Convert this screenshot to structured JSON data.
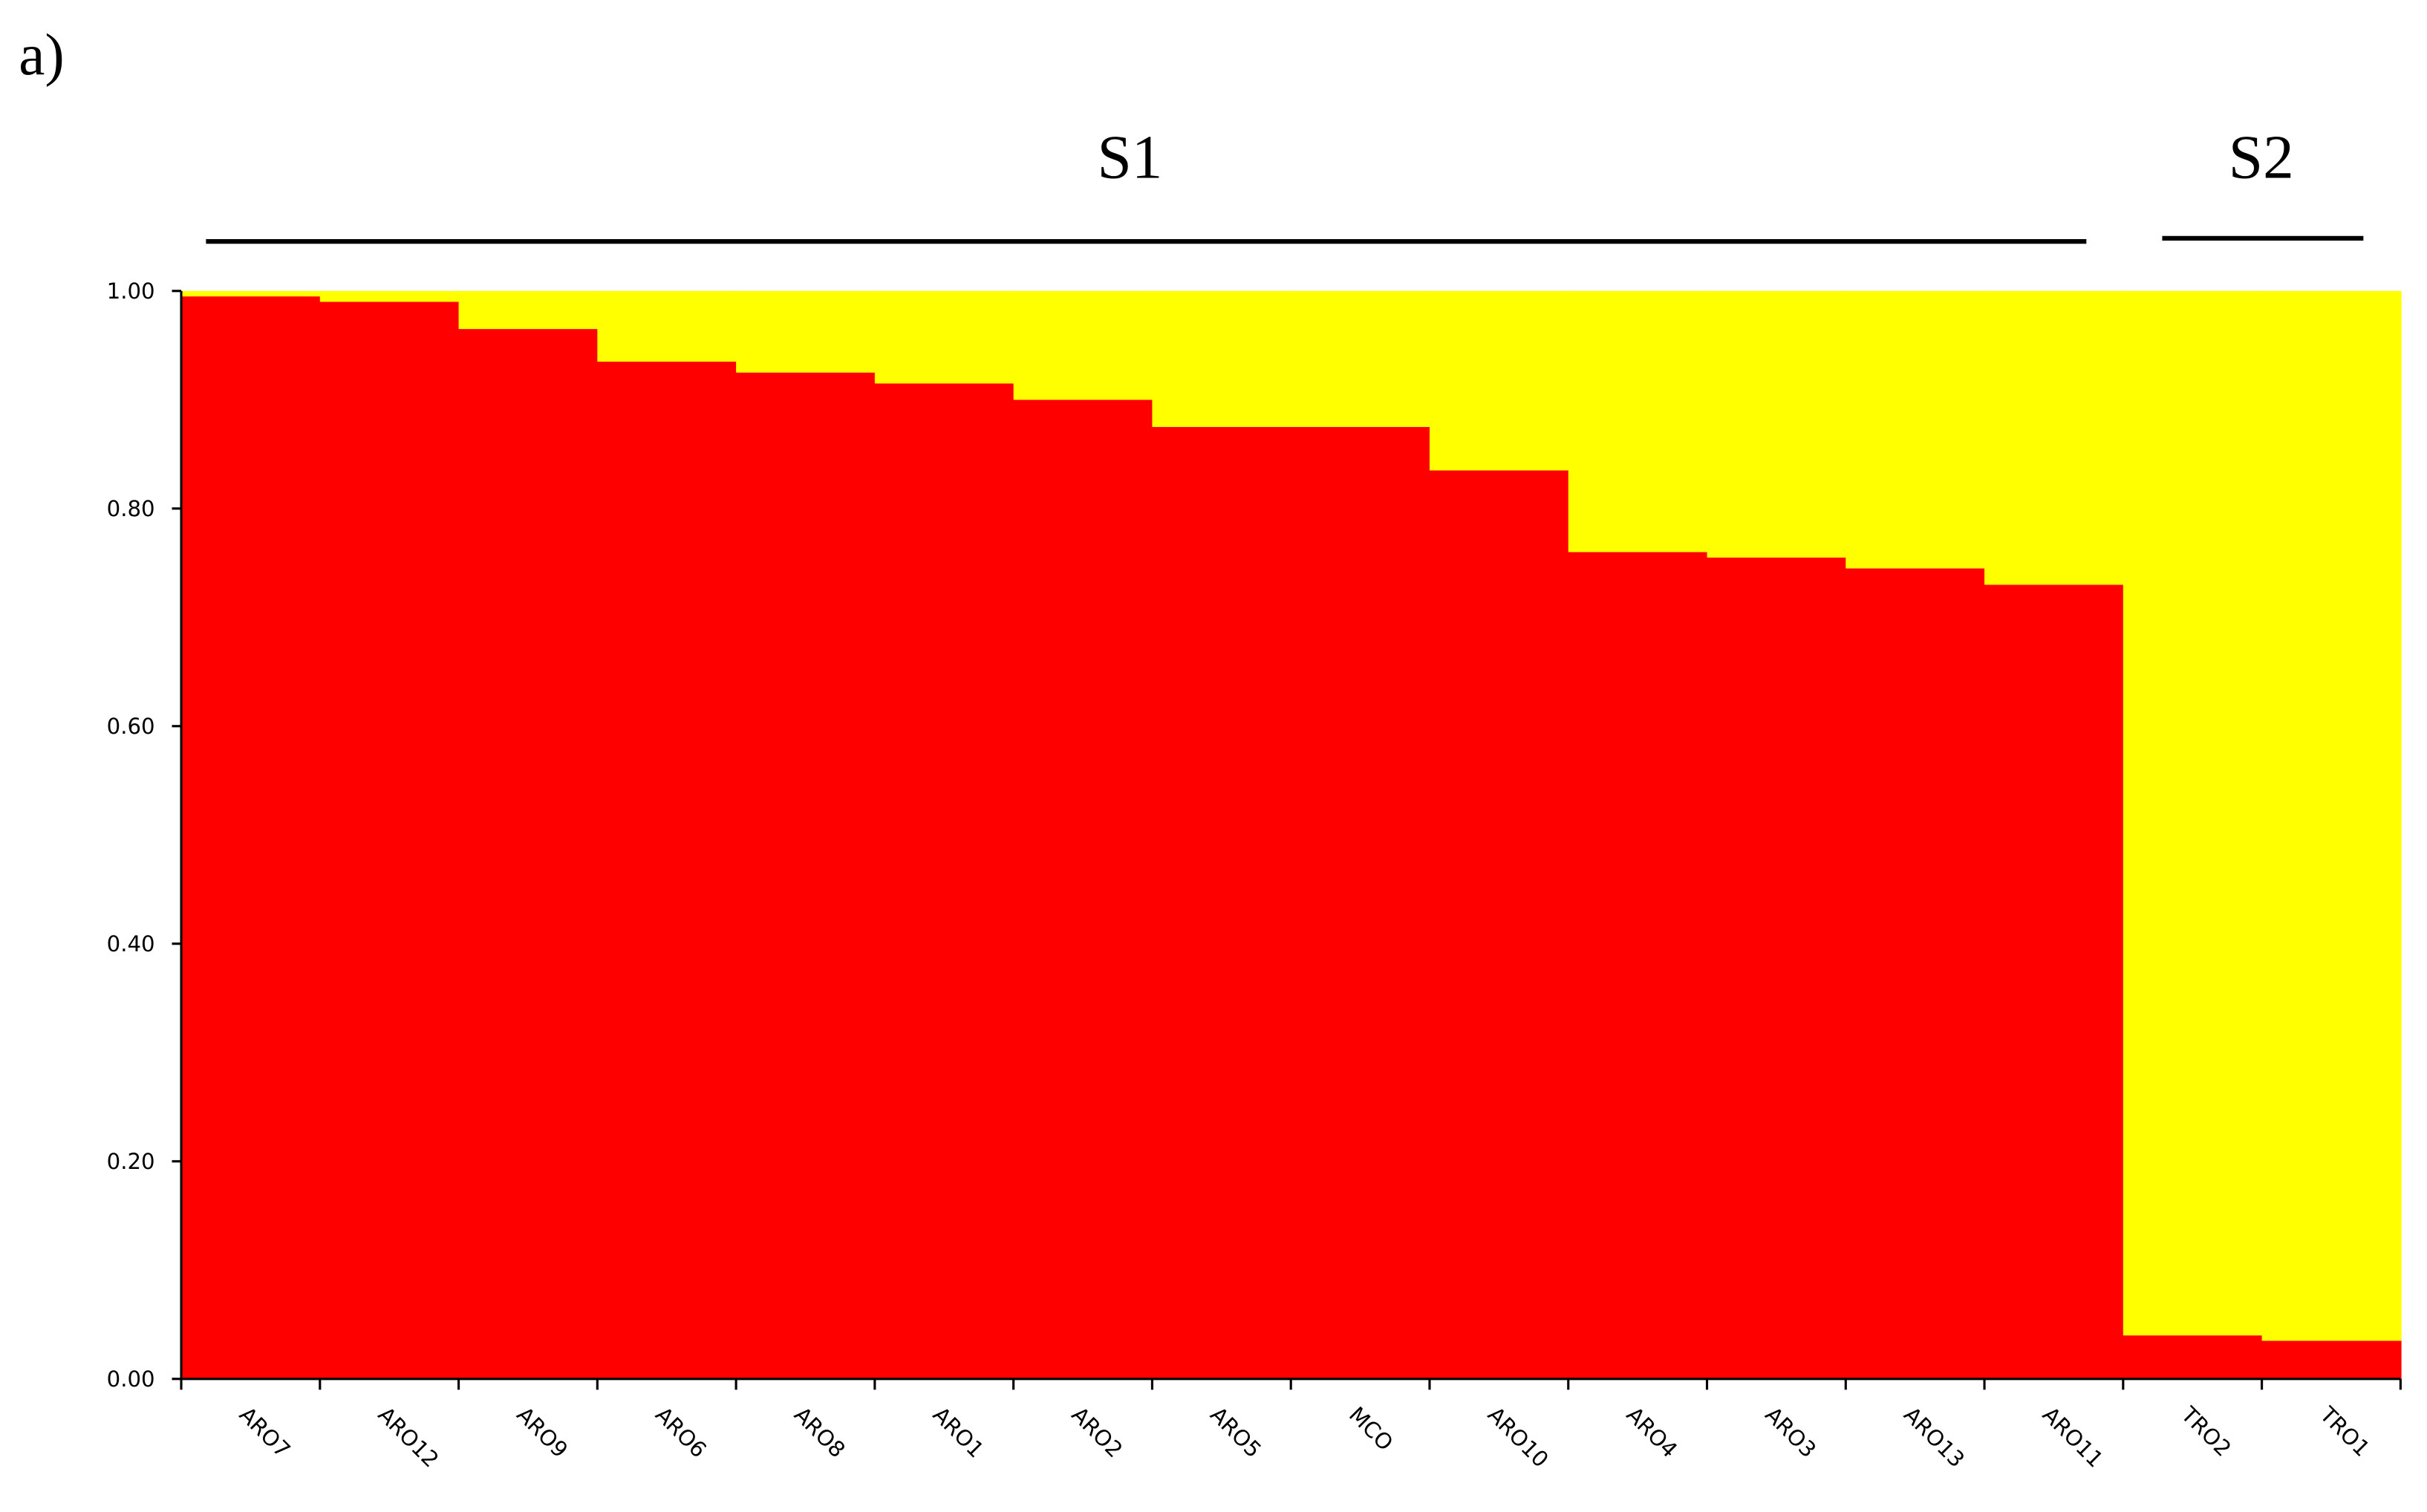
{
  "chart_data": {
    "type": "stacked_bar",
    "panel_label": "a)",
    "groups": [
      "S1",
      "S2"
    ],
    "categories": [
      "ARO7",
      "ARO12",
      "ARO9",
      "ARO6",
      "ARO8",
      "ARO1",
      "ARO2",
      "ARO5",
      "MCO",
      "ARO10",
      "ARO4",
      "ARO3",
      "ARO13",
      "ARO11",
      "TRO2",
      "TRO1"
    ],
    "series": [
      {
        "color": "#ff0000",
        "values": [
          0.995,
          0.99,
          0.965,
          0.935,
          0.925,
          0.915,
          0.9,
          0.875,
          0.875,
          0.835,
          0.76,
          0.755,
          0.745,
          0.73,
          0.04,
          0.035
        ]
      },
      {
        "color": "#ffff00",
        "values": [
          0.005,
          0.01,
          0.035,
          0.065,
          0.075,
          0.085,
          0.1,
          0.125,
          0.125,
          0.165,
          0.24,
          0.245,
          0.255,
          0.27,
          0.96,
          0.965
        ]
      }
    ],
    "ylim": [
      0,
      1
    ],
    "yticks": [
      {
        "value": 0,
        "label": "0.00"
      },
      {
        "value": 0.2,
        "label": "0.20"
      },
      {
        "value": 0.4,
        "label": "0.40"
      },
      {
        "value": 0.6,
        "label": "0.60"
      },
      {
        "value": 0.8,
        "label": "0.80"
      },
      {
        "value": 1,
        "label": "1.00"
      }
    ]
  }
}
